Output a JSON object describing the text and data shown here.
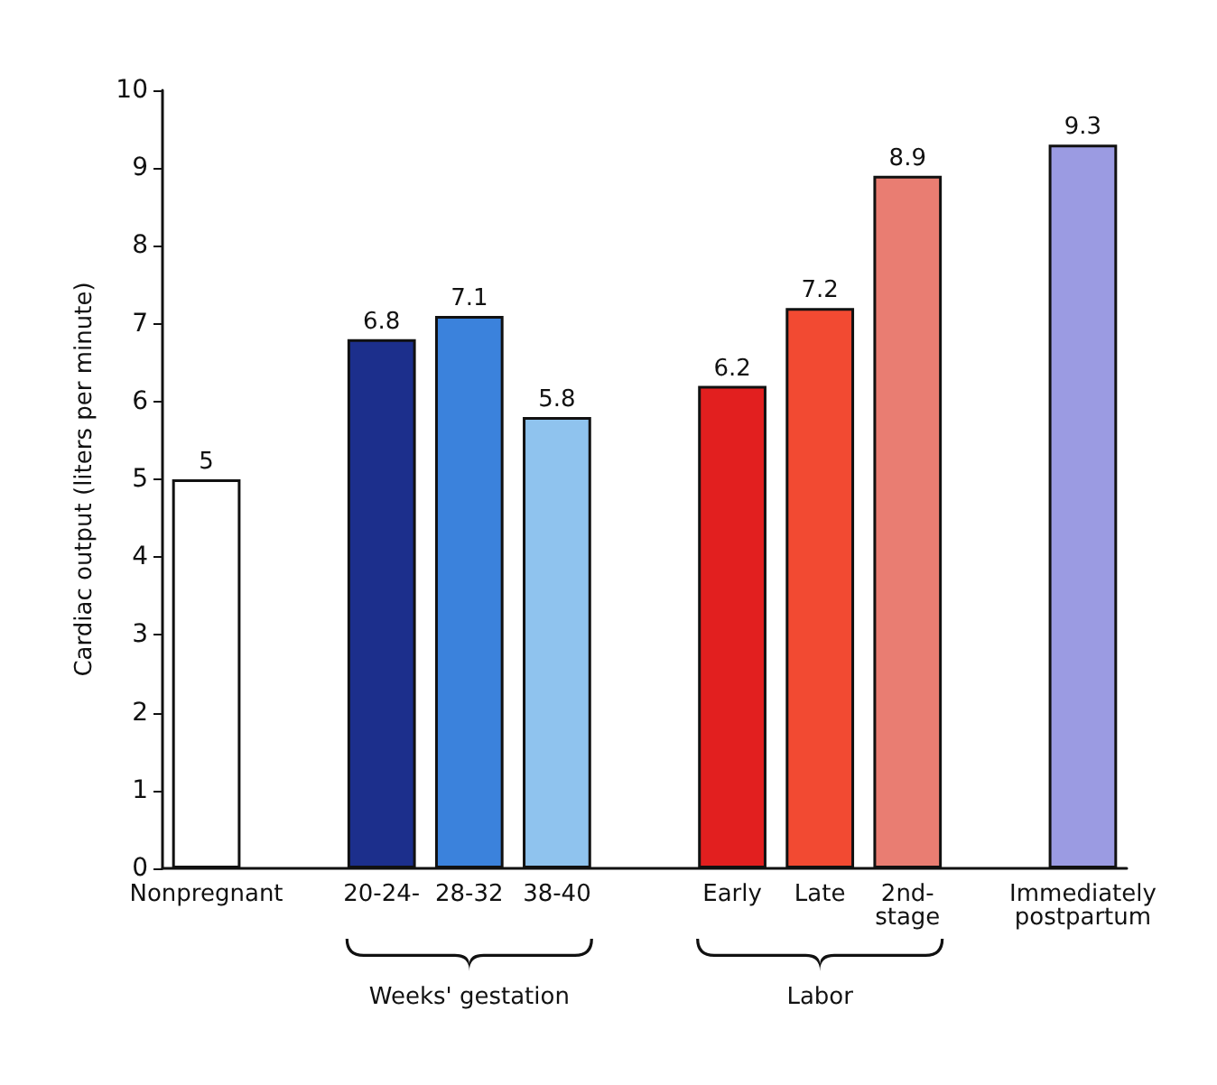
{
  "chart_data": {
    "type": "bar",
    "ylabel": "Cardiac output (liters per minute)",
    "categories": [
      "Nonpregnant",
      null,
      "20-24-",
      "28-32",
      "38-40",
      null,
      "Early",
      "Late",
      "2nd-stage",
      null,
      "Immediately postpartum"
    ],
    "values": [
      5,
      null,
      6.8,
      7.1,
      5.8,
      null,
      6.2,
      7.2,
      8.9,
      null,
      9.3
    ],
    "colors": [
      "#ffffff",
      null,
      "#1c2f8c",
      "#3b82dc",
      "#8fc3ee",
      null,
      "#e21f1f",
      "#f24a32",
      "#e97d72",
      null,
      "#9b9be2"
    ],
    "ylim": [
      0,
      10
    ],
    "yticks": [
      0,
      1,
      2,
      3,
      4,
      5,
      6,
      7,
      8,
      9,
      10
    ],
    "grid": false,
    "data_labels": true,
    "annotations": [
      "Weeks' gestation",
      "Labor"
    ]
  }
}
